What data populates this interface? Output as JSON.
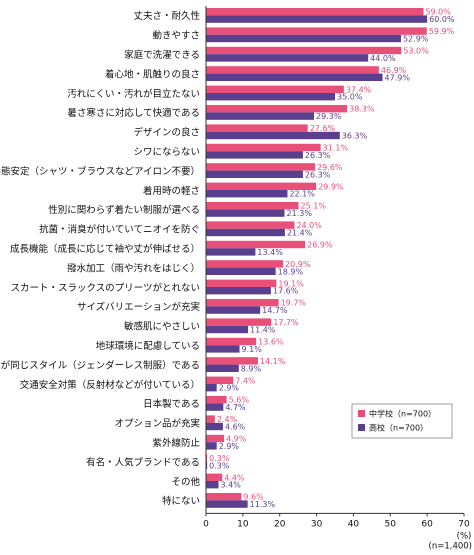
{
  "chart_data": {
    "type": "bar",
    "orientation": "horizontal",
    "categories": [
      "丈夫さ・耐久性",
      "動きやすさ",
      "家庭で洗濯できる",
      "着心地・肌触りの良さ",
      "汚れにくい・汚れが目立たない",
      "暑さ寒さに対応して快適である",
      "デザインの良さ",
      "シワにならない",
      "形態安定（シャツ・ブラウスなどアイロン不要）",
      "着用時の軽さ",
      "性別に関わらず着たい制服が選べる",
      "抗菌・消臭が付いていてニオイを防ぐ",
      "成長機能（成長に応じて袖や丈が伸ばせる）",
      "撥水加工（雨や汚れをはじく）",
      "スカート・スラックスのプリーツがとれない",
      "サイズバリエーションが充実",
      "敏感肌にやさしい",
      "地球環境に配慮している",
      "男女が同じスタイル（ジェンダーレス制服）である",
      "交通安全対策（反射材などが付いている）",
      "日本製である",
      "オプション品が充実",
      "紫外線防止",
      "有名・人気ブランドである",
      "その他",
      "特にない"
    ],
    "series": [
      {
        "name": "中学校（n=700）",
        "color": "#e8507a",
        "values": [
          59.0,
          59.9,
          53.0,
          46.9,
          37.4,
          38.3,
          27.6,
          31.1,
          29.6,
          29.9,
          25.1,
          24.0,
          26.9,
          20.9,
          19.1,
          19.7,
          17.7,
          13.6,
          14.1,
          7.4,
          5.6,
          2.4,
          4.9,
          0.3,
          4.4,
          9.6
        ],
        "labels": [
          "59.0%",
          "59.9%",
          "53.0%",
          "46.9%",
          "37.4%",
          "38.3%",
          "27.6%",
          "31.1%",
          "29.6%",
          "29.9%",
          "25.1%",
          "24.0%",
          "26.9%",
          "20.9%",
          "19.1%",
          "19.7%",
          "17.7%",
          "13.6%",
          "14.1%",
          "7.4%",
          "5.6%",
          "2.4%",
          "4.9%",
          "0.3%",
          "4.4%",
          "9.6%"
        ]
      },
      {
        "name": "高校（n=700）",
        "color": "#5a3f8f",
        "values": [
          60.0,
          52.9,
          44.0,
          47.9,
          35.0,
          29.3,
          36.3,
          26.3,
          26.3,
          22.1,
          21.3,
          21.4,
          13.4,
          18.9,
          17.6,
          14.7,
          11.4,
          9.1,
          8.9,
          2.9,
          4.7,
          4.6,
          2.9,
          0.3,
          3.4,
          11.3
        ],
        "labels": [
          "60.0%",
          "52.9%",
          "44.0%",
          "47.9%",
          "35.0%",
          "29.3%",
          "36.3%",
          "26.3%",
          "26.3%",
          "22.1%",
          "21.3%",
          "21.4%",
          "13.4%",
          "18.9%",
          "17.6%",
          "14.7%",
          "11.4%",
          "9.1%",
          "8.9%",
          "2.9%",
          "4.7%",
          "4.6%",
          "2.9%",
          "0.3%",
          "3.4%",
          "11.3%"
        ]
      }
    ],
    "xlim": [
      0,
      70
    ],
    "x_ticks": [
      "0",
      "10",
      "20",
      "30",
      "40",
      "50",
      "60",
      "70"
    ],
    "unit": "(%)",
    "note": "(n=1,400)",
    "legend_position": "bottom-right",
    "grid": false
  }
}
